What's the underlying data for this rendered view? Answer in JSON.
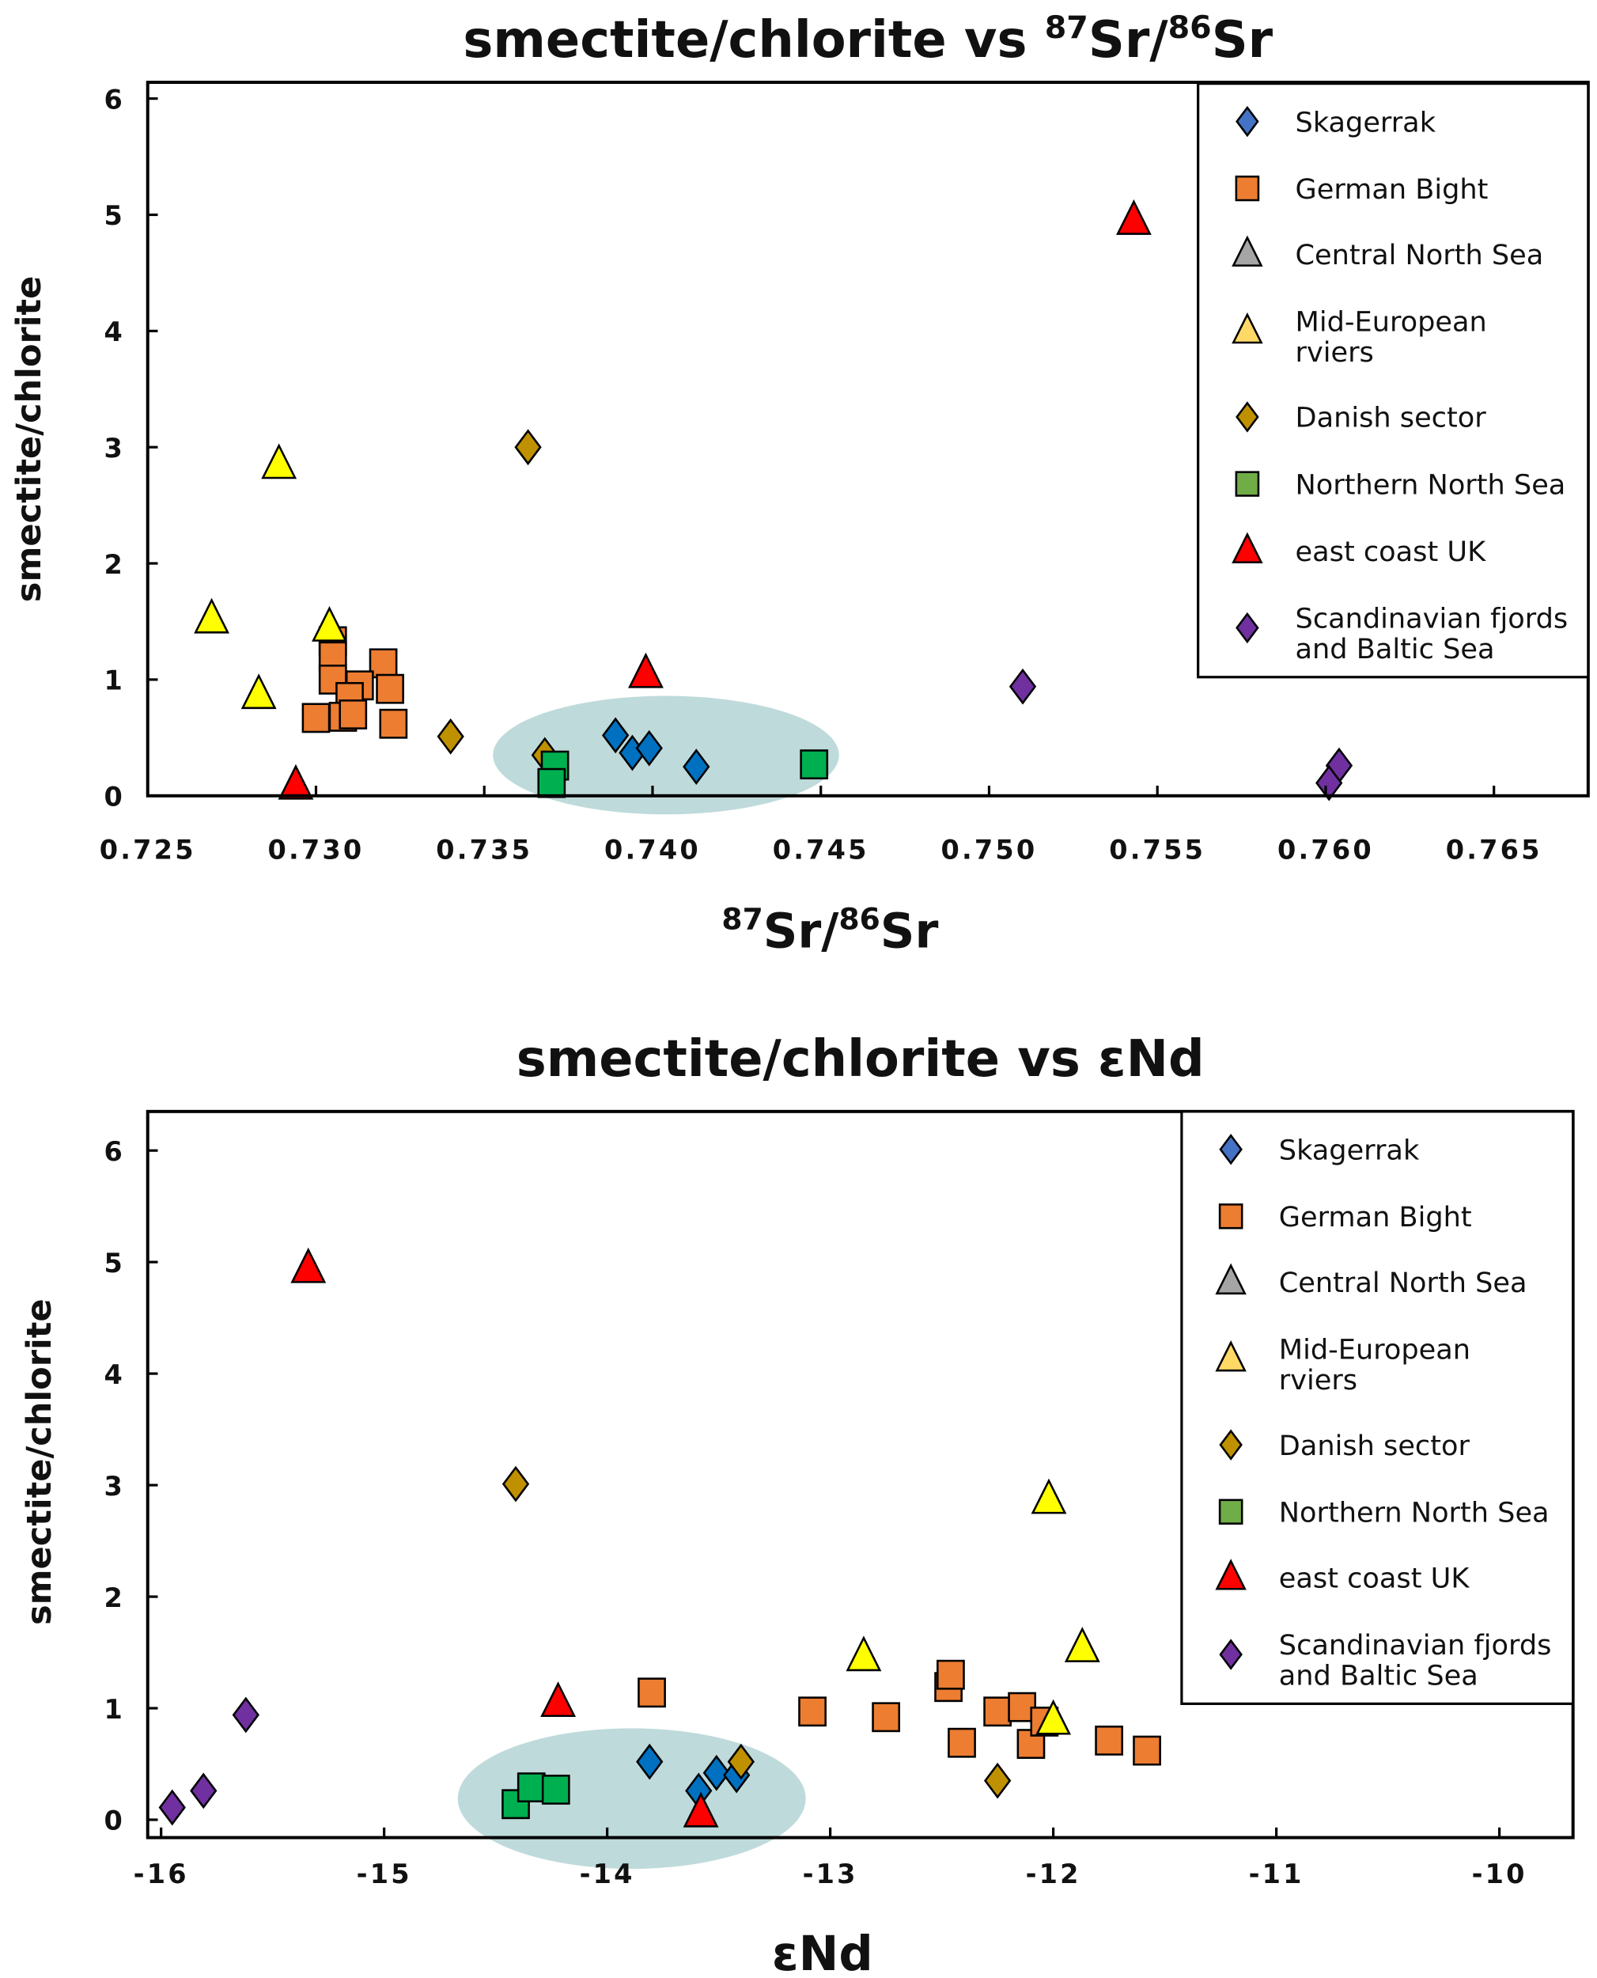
{
  "groups": [
    {
      "key": "skag",
      "label": [
        "Skagerrak"
      ],
      "marker": "diamond",
      "color": "#0070C0",
      "legend_color": "#4472C4"
    },
    {
      "key": "gb",
      "label": [
        "German Bight"
      ],
      "marker": "square",
      "color": "#ED7D31",
      "legend_color": "#ED7D31"
    },
    {
      "key": "cns",
      "label": [
        "Central North Sea"
      ],
      "marker": "triangle",
      "color": "#A5A5A5",
      "legend_color": "#A5A5A5"
    },
    {
      "key": "mer",
      "label": [
        "Mid-European",
        "rviers"
      ],
      "marker": "triangle",
      "color": "#FFFF00",
      "legend_color": "#FFD966"
    },
    {
      "key": "dan",
      "label": [
        "Danish sector"
      ],
      "marker": "diamond",
      "color": "#BF9000",
      "legend_color": "#BF9000"
    },
    {
      "key": "nns",
      "label": [
        "Northern North Sea"
      ],
      "marker": "square",
      "color": "#00B050",
      "legend_color": "#70AD47"
    },
    {
      "key": "ecuk",
      "label": [
        "east coast UK"
      ],
      "marker": "triangle",
      "color": "#FF0000",
      "legend_color": "#FF0000"
    },
    {
      "key": "scan",
      "label": [
        "Scandinavian fjords",
        "and Baltic Sea"
      ],
      "marker": "diamond",
      "color": "#7030A0",
      "legend_color": "#7030A0"
    }
  ],
  "chart_data": [
    {
      "type": "scatter",
      "title": [
        {
          "t": "smectite/chlorite vs "
        },
        {
          "t": "87",
          "sup": true
        },
        {
          "t": "Sr/"
        },
        {
          "t": "86",
          "sup": true
        },
        {
          "t": "Sr"
        }
      ],
      "xlabel": [
        {
          "t": "87",
          "sup": true
        },
        {
          "t": "Sr/"
        },
        {
          "t": "86",
          "sup": true
        },
        {
          "t": "Sr"
        }
      ],
      "ylabel": "smectite/chlorite",
      "xlim": [
        0.725,
        0.7678
      ],
      "ylim": [
        0,
        6.14
      ],
      "xticks": [
        "0.725",
        "0.730",
        "0.735",
        "0.740",
        "0.745",
        "0.750",
        "0.755",
        "0.760",
        "0.765"
      ],
      "yticks": [
        "0",
        "1",
        "2",
        "3",
        "4",
        "5",
        "6"
      ],
      "grid": false,
      "legend": "top-right",
      "highlight_ellipse": {
        "cx": 0.7404,
        "cy": 0.35,
        "rx": 0.00514,
        "ry": 0.51,
        "color": "#BFDADA"
      },
      "series": {
        "skag": [
          [
            0.7389,
            0.52
          ],
          [
            0.7394,
            0.37
          ],
          [
            0.7399,
            0.41
          ],
          [
            0.7413,
            0.25
          ]
        ],
        "gb": [
          [
            0.7305,
            1.33
          ],
          [
            0.7305,
            1.2
          ],
          [
            0.732,
            1.14
          ],
          [
            0.7305,
            1.0
          ],
          [
            0.7313,
            0.95
          ],
          [
            0.731,
            0.85
          ],
          [
            0.7322,
            0.92
          ],
          [
            0.73,
            0.67
          ],
          [
            0.7308,
            0.68
          ],
          [
            0.7311,
            0.7
          ],
          [
            0.7323,
            0.62
          ]
        ],
        "cns": [],
        "mer": [
          [
            0.7289,
            2.85
          ],
          [
            0.7269,
            1.52
          ],
          [
            0.7304,
            1.45
          ],
          [
            0.7283,
            0.87
          ]
        ],
        "dan": [
          [
            0.7363,
            3.0
          ],
          [
            0.734,
            0.51
          ],
          [
            0.7368,
            0.35
          ]
        ],
        "nns": [
          [
            0.7371,
            0.26
          ],
          [
            0.737,
            0.11
          ],
          [
            0.7448,
            0.27
          ]
        ],
        "ecuk": [
          [
            0.7543,
            4.95
          ],
          [
            0.7398,
            1.05
          ],
          [
            0.7294,
            0.09
          ]
        ],
        "scan": [
          [
            0.751,
            0.94
          ],
          [
            0.7604,
            0.26
          ],
          [
            0.7601,
            0.11
          ]
        ]
      }
    },
    {
      "type": "scatter",
      "title": [
        {
          "t": "smectite/chlorite vs εNd"
        }
      ],
      "xlabel": [
        {
          "t": "εNd"
        }
      ],
      "ylabel": "smectite/chlorite",
      "xlim": [
        -16.06,
        -9.67
      ],
      "ylim": [
        -0.16,
        6.35
      ],
      "xticks": [
        "-16",
        "-15",
        "-14",
        "-13",
        "-12",
        "-11",
        "-10"
      ],
      "yticks": [
        "0",
        "1",
        "2",
        "3",
        "4",
        "5",
        "6"
      ],
      "grid": false,
      "legend": "top-right",
      "highlight_ellipse": {
        "cx": -13.89,
        "cy": 0.19,
        "rx": 0.78,
        "ry": 0.63,
        "color": "#BFDADA"
      },
      "series": {
        "skag": [
          [
            -13.81,
            0.52
          ],
          [
            -13.59,
            0.26
          ],
          [
            -13.51,
            0.42
          ],
          [
            -13.42,
            0.4
          ]
        ],
        "gb": [
          [
            -13.8,
            1.14
          ],
          [
            -13.08,
            0.97
          ],
          [
            -12.75,
            0.92
          ],
          [
            -12.47,
            1.19
          ],
          [
            -12.46,
            1.3
          ],
          [
            -12.41,
            0.69
          ],
          [
            -12.25,
            0.97
          ],
          [
            -12.14,
            1.01
          ],
          [
            -12.1,
            0.68
          ],
          [
            -12.04,
            0.88
          ],
          [
            -11.75,
            0.71
          ],
          [
            -11.58,
            0.62
          ]
        ],
        "cns": [],
        "mer": [
          [
            -12.02,
            2.87
          ],
          [
            -12.85,
            1.46
          ],
          [
            -11.87,
            1.54
          ],
          [
            -12.0,
            0.89
          ]
        ],
        "dan": [
          [
            -14.41,
            3.01
          ],
          [
            -13.4,
            0.52
          ],
          [
            -12.25,
            0.35
          ]
        ],
        "nns": [
          [
            -14.41,
            0.14
          ],
          [
            -14.34,
            0.29
          ],
          [
            -14.23,
            0.27
          ]
        ],
        "ecuk": [
          [
            -15.34,
            4.94
          ],
          [
            -14.22,
            1.05
          ],
          [
            -13.58,
            0.06
          ]
        ],
        "scan": [
          [
            -15.62,
            0.94
          ],
          [
            -15.81,
            0.26
          ],
          [
            -15.95,
            0.11
          ]
        ]
      }
    }
  ]
}
